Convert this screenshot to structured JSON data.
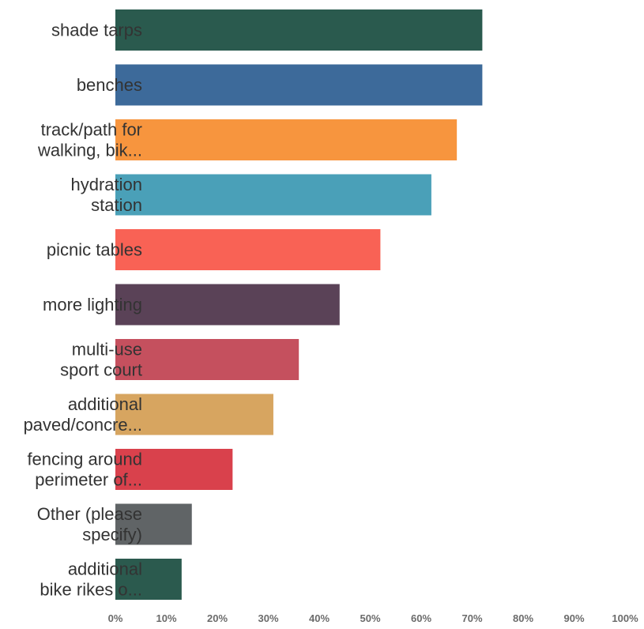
{
  "chart_data": {
    "type": "bar",
    "orientation": "horizontal",
    "title": "",
    "xlabel": "",
    "ylabel": "",
    "xlim": [
      0,
      100
    ],
    "x_ticks": [
      "0%",
      "10%",
      "20%",
      "30%",
      "40%",
      "50%",
      "60%",
      "70%",
      "80%",
      "90%",
      "100%"
    ],
    "grid": false,
    "legend": "none",
    "categories": [
      [
        "shade tarps"
      ],
      [
        "benches"
      ],
      [
        "track/path for",
        "walking, bik..."
      ],
      [
        "hydration",
        "station"
      ],
      [
        "picnic tables"
      ],
      [
        "more lighting"
      ],
      [
        "multi-use",
        "sport court"
      ],
      [
        "additional",
        "paved/concre..."
      ],
      [
        "fencing around",
        "perimeter of..."
      ],
      [
        "Other (please",
        "specify)"
      ],
      [
        "additional",
        "bike rikes o..."
      ]
    ],
    "values": [
      72,
      72,
      67,
      62,
      52,
      44,
      36,
      31,
      23,
      15,
      13
    ],
    "colors": [
      "#2a5a4e",
      "#3d6a9a",
      "#f7953e",
      "#4aa0b8",
      "#f96255",
      "#5a4257",
      "#c5505e",
      "#d7a560",
      "#d9414c",
      "#606466",
      "#2b5a4e"
    ]
  }
}
